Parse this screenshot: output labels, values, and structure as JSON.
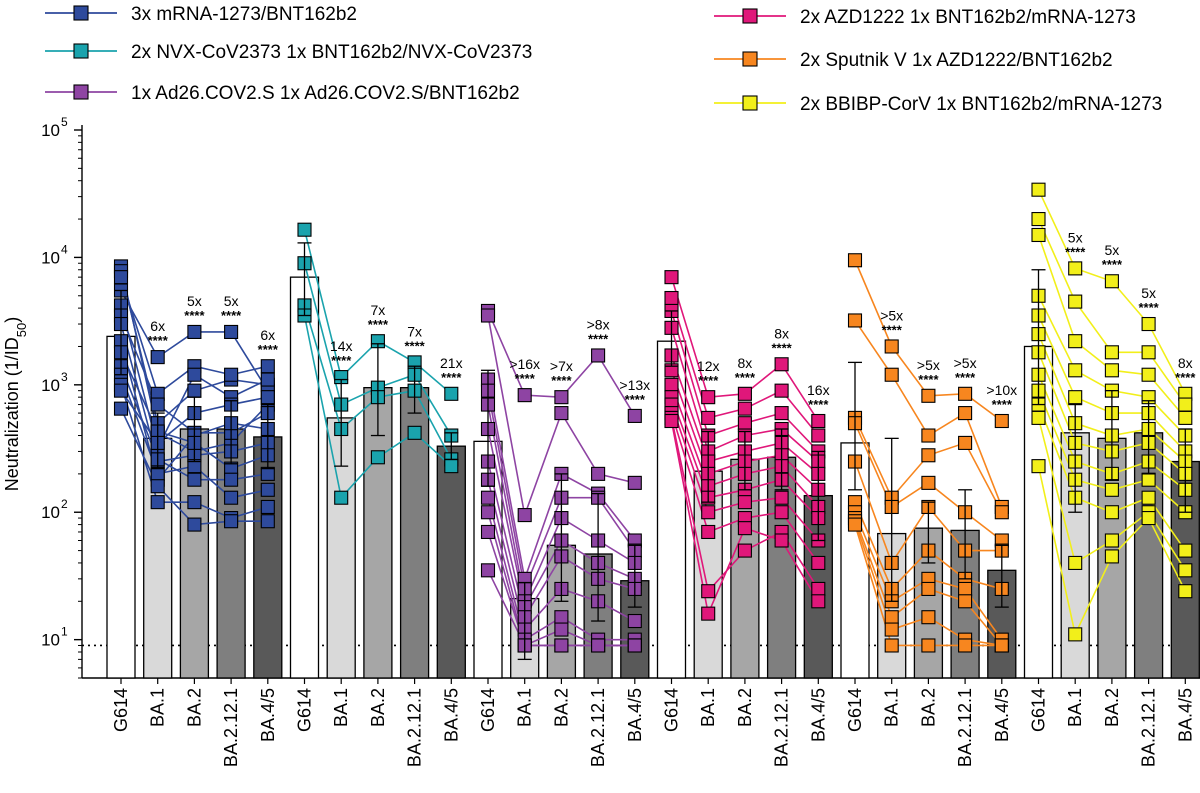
{
  "chart_data": {
    "type": "bar",
    "ylabel": "Neutralization (1/ID",
    "ylabel_sub": "50",
    "ylabel_end": ")",
    "yscale": "log",
    "ylim": [
      5,
      100000
    ],
    "yticks": [
      {
        "value": 10,
        "base": "10",
        "exp": "1"
      },
      {
        "value": 100,
        "base": "10",
        "exp": "2"
      },
      {
        "value": 1000,
        "base": "10",
        "exp": "3"
      },
      {
        "value": 10000,
        "base": "10",
        "exp": "4"
      },
      {
        "value": 100000,
        "base": "10",
        "exp": "5"
      }
    ],
    "limit_of_detection": 9,
    "variants": [
      "G614",
      "BA.1",
      "BA.2",
      "BA.2.12.1",
      "BA.4/5"
    ],
    "bar_colors": [
      "#ffffff",
      "#d9d9d9",
      "#a6a6a6",
      "#7f7f7f",
      "#595959"
    ],
    "groups": [
      {
        "name": "3x mRNA-1273/BNT162b2",
        "color": "#2e4a9c",
        "geomean": [
          2400,
          380,
          450,
          450,
          390
        ],
        "err_hi": [
          5500,
          600,
          800,
          750,
          700
        ],
        "err_lo": [
          1200,
          220,
          250,
          240,
          220
        ],
        "fold": [
          "",
          "6x",
          "5x",
          "5x",
          "6x"
        ],
        "sig": [
          "",
          "****",
          "****",
          "****",
          "****"
        ],
        "subjects": [
          [
            8500,
            420,
            300,
            350,
            700
          ],
          [
            7800,
            500,
            900,
            1100,
            1000
          ],
          [
            7000,
            850,
            1400,
            1200,
            1400
          ],
          [
            5500,
            1650,
            2600,
            2600,
            900
          ],
          [
            4200,
            320,
            1200,
            800,
            1100
          ],
          [
            3500,
            700,
            420,
            420,
            600
          ],
          [
            3000,
            250,
            280,
            300,
            350
          ],
          [
            2200,
            180,
            400,
            500,
            450
          ],
          [
            1800,
            430,
            350,
            220,
            280
          ],
          [
            1400,
            260,
            180,
            180,
            200
          ],
          [
            1200,
            200,
            230,
            130,
            150
          ],
          [
            1000,
            120,
            120,
            90,
            110
          ],
          [
            650,
            160,
            80,
            85,
            85
          ],
          [
            900,
            350,
            600,
            700,
            800
          ]
        ]
      },
      {
        "name": "2x NVX-CoV2373 1x BNT162b2/NVX-CoV2373",
        "color": "#1aa3ad",
        "geomean": [
          7000,
          550,
          950,
          950,
          330
        ],
        "err_hi": [
          13000,
          1100,
          2100,
          1400,
          420
        ],
        "err_lo": [
          3500,
          230,
          400,
          600,
          260
        ],
        "fold": [
          "",
          "14x",
          "7x",
          "7x",
          "21x"
        ],
        "sig": [
          "",
          "****",
          "****",
          "****",
          "****"
        ],
        "subjects": [
          [
            16500,
            1150,
            2200,
            1500,
            850
          ],
          [
            9000,
            700,
            950,
            1200,
            400
          ],
          [
            4200,
            450,
            800,
            900,
            260
          ],
          [
            3500,
            130,
            270,
            420,
            230
          ]
        ]
      },
      {
        "name": "1x Ad26.COV2.S 1x Ad26.COV2.S/BNT162b2",
        "color": "#8e44a3",
        "geomean": [
          360,
          21,
          55,
          47,
          29
        ],
        "err_hi": [
          1300,
          28,
          200,
          140,
          55
        ],
        "err_lo": [
          160,
          7,
          20,
          14,
          18
        ],
        "fold": [
          "",
          ">16x",
          ">7x",
          ">8x",
          ">13x"
        ],
        "sig": [
          "",
          "****",
          "****",
          "****",
          "****"
        ],
        "subjects": [
          [
            3800,
            830,
            800,
            1700,
            570
          ],
          [
            3500,
            95,
            600,
            200,
            170
          ],
          [
            1100,
            30,
            200,
            140,
            60
          ],
          [
            900,
            25,
            130,
            130,
            50
          ],
          [
            700,
            20,
            90,
            60,
            40
          ],
          [
            450,
            18,
            60,
            40,
            30
          ],
          [
            250,
            15,
            45,
            30,
            25
          ],
          [
            180,
            12,
            25,
            20,
            14
          ],
          [
            130,
            10,
            15,
            10,
            10
          ],
          [
            100,
            9,
            9,
            9,
            9
          ],
          [
            70,
            9,
            12,
            9,
            9
          ],
          [
            35,
            9,
            9,
            9,
            9
          ]
        ]
      },
      {
        "name": "2x AZD1222 1x BNT162b2/mRNA-1273",
        "color": "#e0177a",
        "geomean": [
          2200,
          210,
          260,
          270,
          135
        ],
        "err_hi": [
          3800,
          430,
          430,
          450,
          300
        ],
        "err_lo": [
          1400,
          120,
          150,
          150,
          60
        ],
        "fold": [
          "",
          "12x",
          "8x",
          "8x",
          "16x"
        ],
        "sig": [
          "",
          "****",
          "****",
          "****",
          "****"
        ],
        "subjects": [
          [
            7000,
            800,
            850,
            1450,
            520
          ],
          [
            4800,
            550,
            650,
            900,
            400
          ],
          [
            3800,
            400,
            500,
            600,
            300
          ],
          [
            2800,
            300,
            400,
            450,
            250
          ],
          [
            1700,
            250,
            300,
            350,
            200
          ],
          [
            1300,
            200,
            250,
            280,
            150
          ],
          [
            1000,
            160,
            200,
            230,
            110
          ],
          [
            800,
            130,
            150,
            180,
            90
          ],
          [
            700,
            100,
            120,
            130,
            60
          ],
          [
            600,
            70,
            90,
            100,
            40
          ],
          [
            550,
            24,
            50,
            70,
            25
          ],
          [
            520,
            16,
            75,
            60,
            20
          ]
        ]
      },
      {
        "name": "2x Sputnik V 1x AZD1222/BNT162b2",
        "color": "#f7861f",
        "geomean": [
          350,
          68,
          75,
          72,
          35
        ],
        "err_hi": [
          1500,
          380,
          120,
          150,
          55
        ],
        "err_lo": [
          150,
          20,
          40,
          30,
          18
        ],
        "fold": [
          "",
          ">5x",
          ">5x",
          ">5x",
          ">10x"
        ],
        "sig": [
          "",
          "****",
          "****",
          "****",
          "****"
        ],
        "subjects": [
          [
            9500,
            2000,
            820,
            850,
            520
          ],
          [
            3200,
            1200,
            400,
            600,
            110
          ],
          [
            550,
            130,
            280,
            350,
            100
          ],
          [
            500,
            110,
            170,
            100,
            60
          ],
          [
            250,
            40,
            110,
            50,
            50
          ],
          [
            120,
            25,
            50,
            30,
            25
          ],
          [
            100,
            20,
            30,
            25,
            10
          ],
          [
            90,
            15,
            25,
            20,
            9
          ],
          [
            85,
            12,
            15,
            10,
            9
          ],
          [
            80,
            9,
            9,
            9,
            9
          ]
        ]
      },
      {
        "name": "2x BBIBP-CorV 1x BNT162b2/mRNA-1273",
        "color": "#f2ef1a",
        "geomean": [
          2000,
          420,
          380,
          420,
          250
        ],
        "err_hi": [
          8000,
          700,
          900,
          750,
          450
        ],
        "err_lo": [
          700,
          100,
          180,
          200,
          100
        ],
        "fold": [
          "",
          "5x",
          "5x",
          "5x",
          "8x"
        ],
        "sig": [
          "",
          "****",
          "****",
          "****",
          "****"
        ],
        "subjects": [
          [
            34000,
            8200,
            6500,
            3000,
            850
          ],
          [
            20000,
            4500,
            1800,
            1800,
            700
          ],
          [
            15000,
            2200,
            1300,
            1200,
            550
          ],
          [
            5000,
            1300,
            900,
            800,
            400
          ],
          [
            3500,
            800,
            600,
            600,
            300
          ],
          [
            2500,
            500,
            400,
            450,
            250
          ],
          [
            1800,
            350,
            300,
            350,
            200
          ],
          [
            1200,
            250,
            200,
            250,
            150
          ],
          [
            900,
            180,
            150,
            180,
            100
          ],
          [
            700,
            130,
            100,
            130,
            50
          ],
          [
            550,
            40,
            60,
            100,
            35
          ],
          [
            230,
            11,
            45,
            90,
            24
          ]
        ]
      }
    ]
  }
}
